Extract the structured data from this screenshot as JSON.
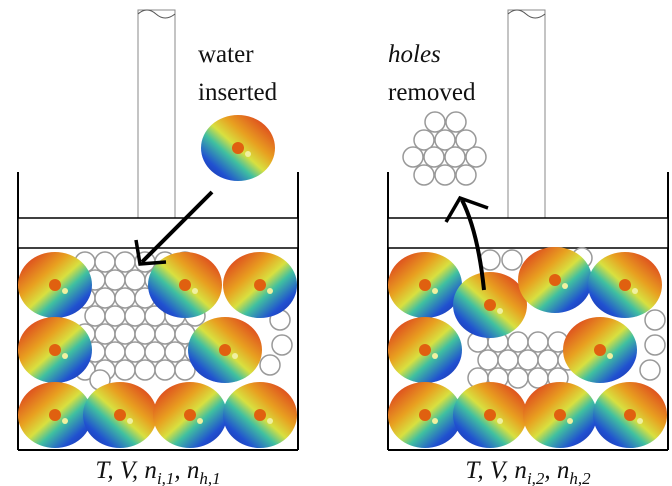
{
  "panels": [
    {
      "label_lines": [
        "water",
        "inserted"
      ],
      "formula_parts": [
        "T, V, n",
        "i,1",
        ", n",
        "h,1"
      ]
    },
    {
      "label_lines": [
        "holes",
        "removed"
      ],
      "formula_parts": [
        "T, V, n",
        "i,2",
        ", n",
        "h,2"
      ]
    }
  ]
}
